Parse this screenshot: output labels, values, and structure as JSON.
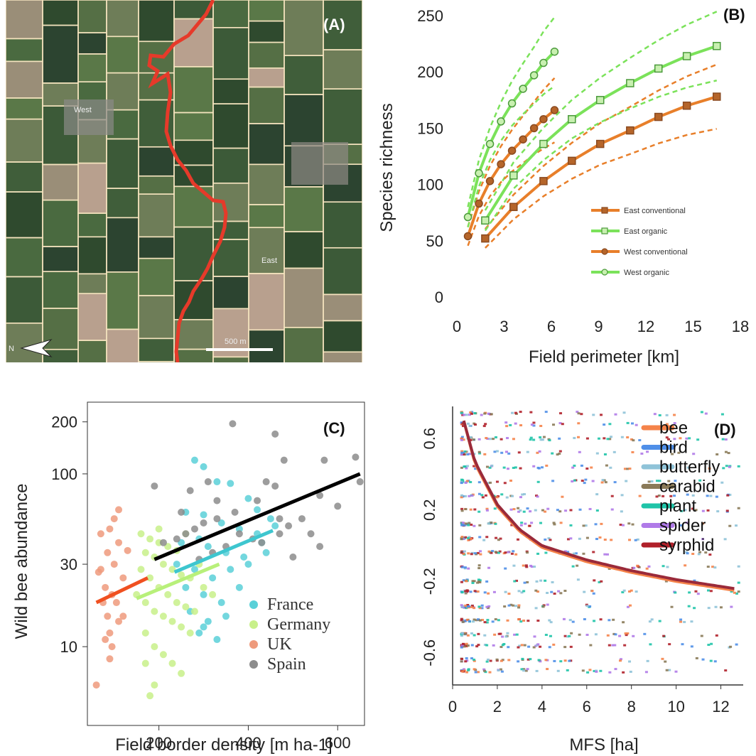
{
  "chart_data": [
    {
      "panel": "A",
      "type": "map",
      "panel_label": "(A)",
      "labels": {
        "west": "West",
        "east": "East",
        "scale": "500 m",
        "north": "N"
      },
      "colors": {
        "border": "#e63a2a",
        "field_edges": "#f3e2bd"
      }
    },
    {
      "panel": "B",
      "type": "line",
      "panel_label": "(B)",
      "xlabel": "Field perimeter [km]",
      "ylabel": "Species richness",
      "xlim": [
        0,
        18
      ],
      "ylim": [
        0,
        250
      ],
      "xticks": [
        0,
        3,
        6,
        9,
        12,
        15,
        18
      ],
      "yticks": [
        0,
        50,
        100,
        150,
        200,
        250
      ],
      "legend_position": "lower-right",
      "series": [
        {
          "name": "East conventional",
          "color": "#e87f2a",
          "marker": "square",
          "filled": true,
          "x": [
            1.8,
            3.6,
            5.5,
            7.3,
            9.1,
            11.0,
            12.8,
            14.6,
            16.5
          ],
          "y": [
            52,
            80,
            103,
            121,
            136,
            148,
            160,
            170,
            178
          ]
        },
        {
          "name": "East organic",
          "color": "#7be25a",
          "marker": "square",
          "filled": false,
          "x": [
            1.8,
            3.6,
            5.5,
            7.3,
            9.1,
            11.0,
            12.8,
            14.6,
            16.5
          ],
          "y": [
            68,
            108,
            136,
            158,
            175,
            190,
            203,
            214,
            223
          ]
        },
        {
          "name": "West conventional",
          "color": "#e87f2a",
          "marker": "circle",
          "filled": true,
          "x": [
            0.7,
            1.4,
            2.1,
            2.8,
            3.5,
            4.2,
            4.9,
            5.5,
            6.2
          ],
          "y": [
            54,
            83,
            103,
            118,
            130,
            140,
            150,
            158,
            166
          ]
        },
        {
          "name": "West organic",
          "color": "#7be25a",
          "marker": "circle",
          "filled": false,
          "x": [
            0.7,
            1.4,
            2.1,
            2.8,
            3.5,
            4.2,
            4.9,
            5.5,
            6.2
          ],
          "y": [
            71,
            110,
            136,
            156,
            172,
            185,
            197,
            208,
            218
          ]
        }
      ]
    },
    {
      "panel": "C",
      "type": "scatter",
      "panel_label": "(C)",
      "xlabel": "Field border density [m ha-1]",
      "ylabel": "Wild bee abundance",
      "yscale": "log",
      "xlim": [
        40,
        660
      ],
      "ylim": [
        3.5,
        260
      ],
      "xticks": [
        200,
        400,
        600
      ],
      "yticks": [
        10,
        30,
        100,
        200
      ],
      "legend_position": "lower-right",
      "series": [
        {
          "name": "France",
          "color": "#5ad0d8",
          "points": [
            [
              280,
              120
            ],
            [
              300,
              110
            ],
            [
              330,
              90
            ],
            [
              360,
              88
            ],
            [
              400,
              72
            ],
            [
              420,
              62
            ],
            [
              260,
              60
            ],
            [
              300,
              58
            ],
            [
              340,
              52
            ],
            [
              380,
              48
            ],
            [
              420,
              45
            ],
            [
              460,
              50
            ],
            [
              250,
              40
            ],
            [
              290,
              42
            ],
            [
              310,
              38
            ],
            [
              350,
              35
            ],
            [
              390,
              33
            ],
            [
              430,
              40
            ],
            [
              240,
              30
            ],
            [
              280,
              28
            ],
            [
              320,
              25
            ],
            [
              360,
              28
            ],
            [
              400,
              30
            ],
            [
              260,
              22
            ],
            [
              300,
              20
            ],
            [
              340,
              18
            ],
            [
              380,
              22
            ],
            [
              270,
              16
            ],
            [
              310,
              14
            ],
            [
              350,
              15
            ],
            [
              290,
              12
            ],
            [
              330,
              11
            ],
            [
              300,
              13
            ],
            [
              440,
              35
            ],
            [
              450,
              55
            ]
          ],
          "fit": [
            [
              235,
              27
            ],
            [
              455,
              47
            ]
          ]
        },
        {
          "name": "Germany",
          "color": "#c8f08a",
          "points": [
            [
              160,
              45
            ],
            [
              180,
              42
            ],
            [
              200,
              40
            ],
            [
              220,
              38
            ],
            [
              240,
              36
            ],
            [
              170,
              35
            ],
            [
              190,
              33
            ],
            [
              210,
              30
            ],
            [
              230,
              28
            ],
            [
              250,
              26
            ],
            [
              270,
              25
            ],
            [
              160,
              28
            ],
            [
              180,
              25
            ],
            [
              200,
              22
            ],
            [
              220,
              20
            ],
            [
              240,
              18
            ],
            [
              260,
              17
            ],
            [
              280,
              16
            ],
            [
              150,
              20
            ],
            [
              170,
              18
            ],
            [
              190,
              16
            ],
            [
              210,
              15
            ],
            [
              230,
              14
            ],
            [
              250,
              13
            ],
            [
              170,
              12
            ],
            [
              190,
              10
            ],
            [
              210,
              9
            ],
            [
              230,
              8
            ],
            [
              170,
              8
            ],
            [
              190,
              6
            ],
            [
              180,
              5.2
            ],
            [
              250,
              7
            ],
            [
              270,
              12
            ],
            [
              300,
              22
            ],
            [
              320,
              20
            ],
            [
              200,
              48
            ],
            [
              260,
              45
            ],
            [
              290,
              30
            ]
          ],
          "fit": [
            [
              150,
              19
            ],
            [
              335,
              30
            ]
          ]
        },
        {
          "name": "UK",
          "color": "#ee9a7c",
          "points": [
            [
              100,
              55
            ],
            [
              110,
              62
            ],
            [
              90,
              48
            ],
            [
              70,
              45
            ],
            [
              110,
              40
            ],
            [
              85,
              35
            ],
            [
              70,
              28
            ],
            [
              100,
              30
            ],
            [
              120,
              25
            ],
            [
              80,
              22
            ],
            [
              95,
              20
            ],
            [
              75,
              18
            ],
            [
              105,
              18
            ],
            [
              85,
              15
            ],
            [
              110,
              14
            ],
            [
              90,
              12
            ],
            [
              95,
              10
            ],
            [
              80,
              11
            ],
            [
              120,
              15
            ],
            [
              60,
              6
            ],
            [
              90,
              8.5
            ],
            [
              65,
              27
            ],
            [
              130,
              36
            ]
          ],
          "fit": [
            [
              60,
              18
            ],
            [
              175,
              25
            ]
          ]
        },
        {
          "name": "Spain",
          "color": "#8c8c8c",
          "points": [
            [
              365,
              195
            ],
            [
              460,
              170
            ],
            [
              480,
              120
            ],
            [
              570,
              120
            ],
            [
              640,
              125
            ],
            [
              650,
              90
            ],
            [
              560,
              75
            ],
            [
              600,
              65
            ],
            [
              520,
              55
            ],
            [
              490,
              50
            ],
            [
              470,
              45
            ],
            [
              430,
              40
            ],
            [
              440,
              90
            ],
            [
              420,
              70
            ],
            [
              370,
              60
            ],
            [
              330,
              55
            ],
            [
              300,
              52
            ],
            [
              280,
              48
            ],
            [
              260,
              45
            ],
            [
              240,
              42
            ],
            [
              210,
              40
            ],
            [
              380,
              45
            ],
            [
              350,
              38
            ],
            [
              320,
              35
            ],
            [
              290,
              32
            ],
            [
              190,
              85
            ],
            [
              270,
              80
            ],
            [
              310,
              90
            ],
            [
              460,
              85
            ],
            [
              470,
              55
            ],
            [
              540,
              45
            ],
            [
              410,
              42
            ],
            [
              330,
              70
            ],
            [
              250,
              60
            ],
            [
              560,
              38
            ],
            [
              500,
              33
            ]
          ],
          "fit": [
            [
              190,
              32
            ],
            [
              650,
              100
            ]
          ]
        }
      ]
    },
    {
      "panel": "D",
      "type": "line",
      "panel_label": "(D)",
      "xlabel": "MFS [ha]",
      "ylabel": "",
      "xlim": [
        0,
        13
      ],
      "ylim": [
        -0.78,
        0.78
      ],
      "xticks": [
        0,
        2,
        4,
        6,
        8,
        10,
        12
      ],
      "yticks": [
        -0.6,
        -0.2,
        0.2,
        0.6
      ],
      "legend_position": "top-right",
      "series": [
        {
          "name": "bee",
          "color": "#f5834a"
        },
        {
          "name": "bird",
          "color": "#4f8fe8"
        },
        {
          "name": "butterfly",
          "color": "#8fc3d8"
        },
        {
          "name": "carabid",
          "color": "#8a7a58"
        },
        {
          "name": "plant",
          "color": "#1fc4a8"
        },
        {
          "name": "spider",
          "color": "#b07ae8"
        },
        {
          "name": "syrphid",
          "color": "#b0202a"
        }
      ],
      "fit_curves": [
        {
          "name": "bee",
          "color": "#f5834a",
          "x": [
            0.5,
            1,
            2,
            3,
            4,
            6,
            8,
            10,
            12.6
          ],
          "y": [
            0.7,
            0.46,
            0.22,
            0.08,
            -0.01,
            -0.09,
            -0.15,
            -0.2,
            -0.25
          ]
        },
        {
          "name": "syrphid",
          "color": "#9a2a3a",
          "x": [
            0.5,
            1,
            2,
            3,
            4,
            6,
            8,
            10,
            12.6
          ],
          "y": [
            0.7,
            0.47,
            0.23,
            0.09,
            0.0,
            -0.08,
            -0.14,
            -0.19,
            -0.24
          ]
        }
      ]
    }
  ]
}
